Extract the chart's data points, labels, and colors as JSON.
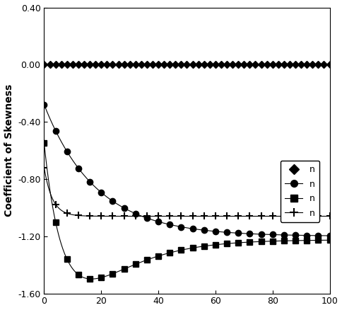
{
  "ylabel": "Coefficient of Skewness",
  "ylim": [
    -1.6,
    0.4
  ],
  "yticks": [
    -1.6,
    -1.2,
    -0.8,
    -0.4,
    0.0,
    0.4
  ],
  "xlim": [
    0,
    100
  ],
  "xticks": [
    0,
    20,
    40,
    60,
    80,
    100
  ],
  "background_color": "#ffffff",
  "series": [
    {
      "label": "n",
      "marker": "D",
      "markersize": 5,
      "linestyle": "none",
      "markevery": 1,
      "x": [
        0,
        2,
        4,
        6,
        8,
        10,
        12,
        14,
        16,
        18,
        20,
        22,
        24,
        26,
        28,
        30,
        32,
        34,
        36,
        38,
        40,
        42,
        44,
        46,
        48,
        50,
        52,
        54,
        56,
        58,
        60,
        62,
        64,
        66,
        68,
        70,
        72,
        74,
        76,
        78,
        80,
        82,
        84,
        86,
        88,
        90,
        92,
        94,
        96,
        98,
        100
      ],
      "y": [
        0.0,
        0.0,
        0.0,
        0.0,
        0.0,
        0.0,
        0.0,
        0.0,
        0.0,
        0.0,
        0.0,
        0.0,
        0.0,
        0.0,
        0.0,
        0.0,
        0.0,
        0.0,
        0.0,
        0.0,
        0.0,
        0.0,
        0.0,
        0.0,
        0.0,
        0.0,
        0.0,
        0.0,
        0.0,
        0.0,
        0.0,
        0.0,
        0.0,
        0.0,
        0.0,
        0.0,
        0.0,
        0.0,
        0.0,
        0.0,
        0.0,
        0.0,
        0.0,
        0.0,
        0.0,
        0.0,
        0.0,
        0.0,
        0.0,
        0.0,
        0.0
      ]
    },
    {
      "label": "n",
      "marker": "o",
      "markersize": 6,
      "linestyle": "-",
      "linewidth": 0.8,
      "markevery": 2,
      "asymptote": -1.2,
      "initial": -0.28,
      "decay": 0.055
    },
    {
      "label": "n",
      "marker": "s",
      "markersize": 6,
      "linestyle": "-",
      "linewidth": 0.8,
      "markevery": 2,
      "asymptote": -1.225,
      "initial": -0.55,
      "decay": 0.18,
      "overshoot": -0.07,
      "overshoot_decay": 0.08
    },
    {
      "label": "n",
      "marker": "+",
      "markersize": 7,
      "linestyle": "-",
      "linewidth": 0.8,
      "markevery": 2,
      "asymptote": -1.06,
      "initial": -0.72,
      "decay": 0.35
    }
  ]
}
